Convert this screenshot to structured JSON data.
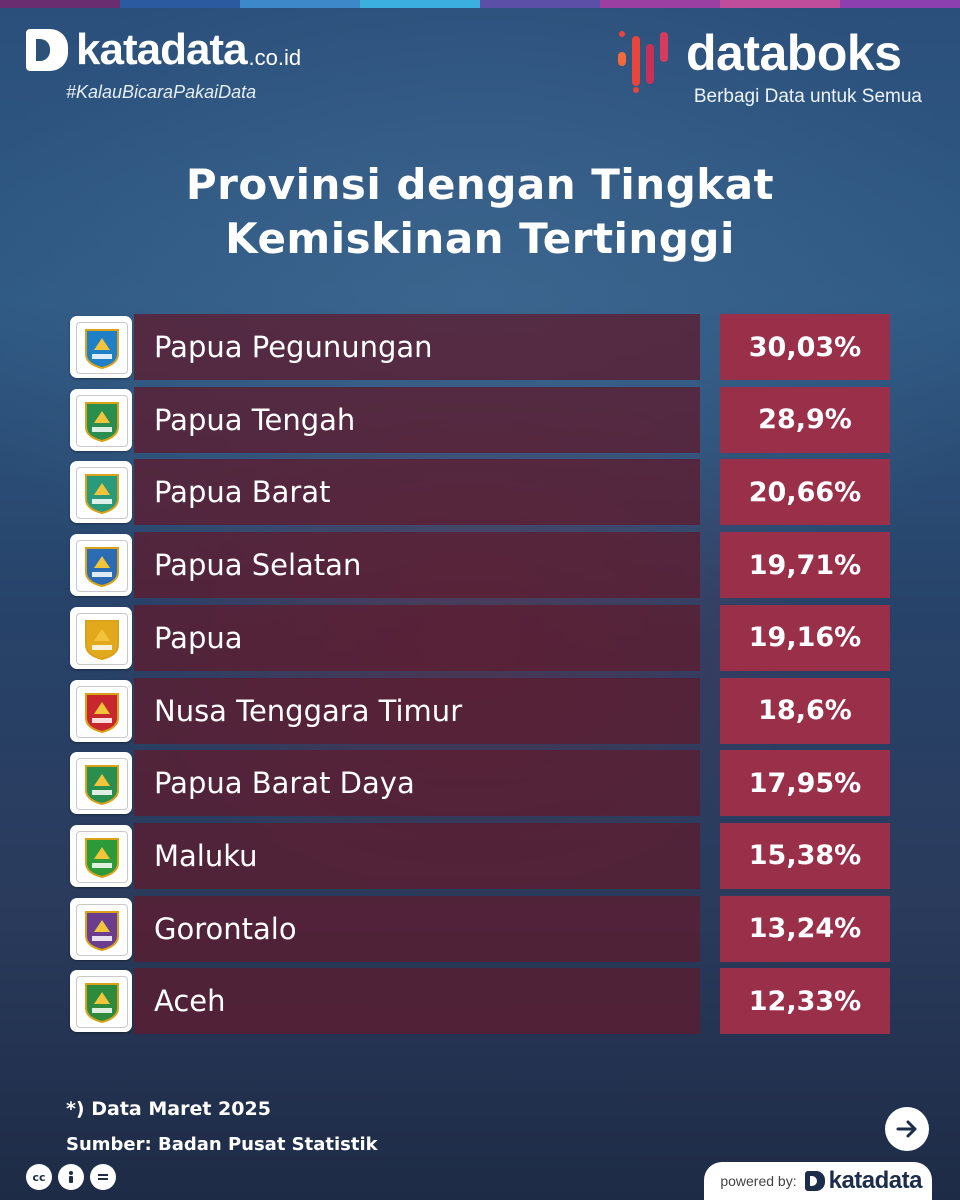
{
  "brand": {
    "katadata_word": "katadata",
    "katadata_suffix": ".co.id",
    "hashtag": "#KalauBicaraPakaiData",
    "databoks_word": "databoks",
    "databoks_tagline": "Berbagi Data untuk Semua",
    "powered_label": "powered by:",
    "powered_word": "katadata",
    "colors": {
      "top_strip": [
        "#6a2d6f",
        "#2c5aa0",
        "#3d88c9",
        "#3bb0e0",
        "#5b4fa8",
        "#9b3fa3",
        "#c04d9c",
        "#8d3fb0"
      ],
      "databoks_bars": [
        "#f26a3c",
        "#e8453c",
        "#c8305a",
        "#d83a5e"
      ],
      "value_box": "#9a2f4a",
      "name_bar": "#5c1c30"
    }
  },
  "title_line1": "Provinsi dengan Tingkat",
  "title_line2": "Kemiskinan Tertinggi",
  "chart_data": {
    "type": "bar",
    "title": "Provinsi dengan Tingkat Kemiskinan Tertinggi",
    "unit": "%",
    "categories": [
      "Papua Pegunungan",
      "Papua Tengah",
      "Papua Barat",
      "Papua Selatan",
      "Papua",
      "Nusa Tenggara Timur",
      "Papua Barat Daya",
      "Maluku",
      "Gorontalo",
      "Aceh"
    ],
    "values": [
      30.03,
      28.9,
      20.66,
      19.71,
      19.16,
      18.6,
      17.95,
      15.38,
      13.24,
      12.33
    ],
    "value_labels": [
      "30,03%",
      "28,9%",
      "20,66%",
      "19,71%",
      "19,16%",
      "18,6%",
      "17,95%",
      "15,38%",
      "13,24%",
      "12,33%"
    ]
  },
  "emblems": [
    {
      "icon": "papua-pegunungan-emblem-icon",
      "caption": "PAPUA PEGUNUNGAN",
      "color": "#1f7fc7"
    },
    {
      "icon": "papua-tengah-emblem-icon",
      "caption": "PAPUA TENGAH",
      "color": "#2a8f4e"
    },
    {
      "icon": "papua-barat-emblem-icon",
      "caption": "PAPUA BARAT",
      "color": "#2a9a7a"
    },
    {
      "icon": "papua-selatan-emblem-icon",
      "caption": "PAPUA SELATAN",
      "color": "#2b6cb5"
    },
    {
      "icon": "papua-emblem-icon",
      "caption": "PAPUA",
      "color": "#e2a91c"
    },
    {
      "icon": "ntt-emblem-icon",
      "caption": "",
      "color": "#c8272d"
    },
    {
      "icon": "papua-barat-daya-emblem-icon",
      "caption": "PAPUA BARAT DAYA",
      "color": "#2a8f4e"
    },
    {
      "icon": "maluku-emblem-icon",
      "caption": "",
      "color": "#2d9a3a"
    },
    {
      "icon": "gorontalo-emblem-icon",
      "caption": "",
      "color": "#6b3d8f"
    },
    {
      "icon": "aceh-emblem-icon",
      "caption": "PANCACITA",
      "color": "#2e8b3d"
    }
  ],
  "footnote": "*) Data Maret 2025",
  "source": "Sumber: Badan Pusat Statistik",
  "license_icons": [
    "cc",
    "by",
    "nd"
  ]
}
